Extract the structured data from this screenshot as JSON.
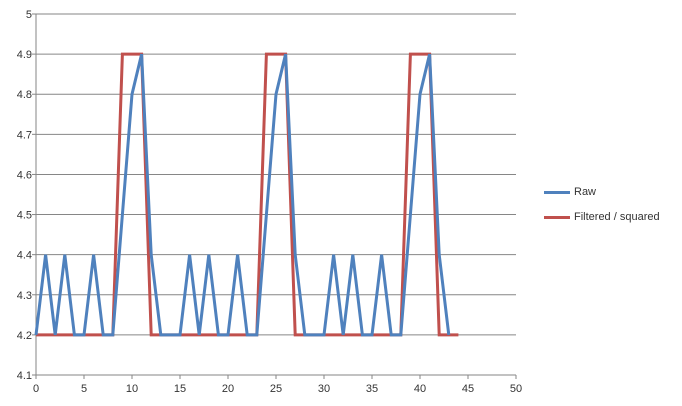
{
  "chart_data": {
    "type": "line",
    "title": "",
    "xlabel": "",
    "ylabel": "",
    "xlim": [
      0,
      50
    ],
    "ylim": [
      4.1,
      5.0
    ],
    "x_ticks": [
      0,
      5,
      10,
      15,
      20,
      25,
      30,
      35,
      40,
      45,
      50
    ],
    "y_ticks": [
      4.1,
      4.2,
      4.3,
      4.4,
      4.5,
      4.6,
      4.7,
      4.8,
      4.9,
      5.0
    ],
    "x_tick_labels": [
      "0",
      "5",
      "10",
      "15",
      "20",
      "25",
      "30",
      "35",
      "40",
      "45",
      "50"
    ],
    "y_tick_labels": [
      "4.1",
      "4.2",
      "4.3",
      "4.4",
      "4.5",
      "4.6",
      "4.7",
      "4.8",
      "4.9",
      "5"
    ],
    "grid": "horizontal",
    "legend_position": "right",
    "series": [
      {
        "name": "Raw",
        "color": "#4F81BD",
        "x": [
          0,
          1,
          2,
          3,
          4,
          5,
          6,
          7,
          8,
          9,
          10,
          11,
          12,
          13,
          14,
          15,
          16,
          17,
          18,
          19,
          20,
          21,
          22,
          23,
          24,
          25,
          26,
          27,
          28,
          29,
          30,
          31,
          32,
          33,
          34,
          35,
          36,
          37,
          38,
          39,
          40,
          41,
          42,
          43
        ],
        "y": [
          4.2,
          4.4,
          4.2,
          4.4,
          4.2,
          4.2,
          4.4,
          4.2,
          4.2,
          4.5,
          4.8,
          4.9,
          4.4,
          4.2,
          4.2,
          4.2,
          4.4,
          4.2,
          4.4,
          4.2,
          4.2,
          4.4,
          4.2,
          4.2,
          4.5,
          4.8,
          4.9,
          4.4,
          4.2,
          4.2,
          4.2,
          4.4,
          4.2,
          4.4,
          4.2,
          4.2,
          4.4,
          4.2,
          4.2,
          4.5,
          4.8,
          4.9,
          4.4,
          4.2
        ]
      },
      {
        "name": "Filtered / squared",
        "color": "#C0504D",
        "x": [
          0,
          1,
          2,
          3,
          4,
          5,
          6,
          7,
          8,
          9,
          10,
          11,
          12,
          13,
          14,
          15,
          16,
          17,
          18,
          19,
          20,
          21,
          22,
          23,
          24,
          25,
          26,
          27,
          28,
          29,
          30,
          31,
          32,
          33,
          34,
          35,
          36,
          37,
          38,
          39,
          40,
          41,
          42,
          43,
          44
        ],
        "y": [
          4.2,
          4.2,
          4.2,
          4.2,
          4.2,
          4.2,
          4.2,
          4.2,
          4.2,
          4.9,
          4.9,
          4.9,
          4.2,
          4.2,
          4.2,
          4.2,
          4.2,
          4.2,
          4.2,
          4.2,
          4.2,
          4.2,
          4.2,
          4.2,
          4.9,
          4.9,
          4.9,
          4.2,
          4.2,
          4.2,
          4.2,
          4.2,
          4.2,
          4.2,
          4.2,
          4.2,
          4.2,
          4.2,
          4.2,
          4.9,
          4.9,
          4.9,
          4.2,
          4.2,
          4.2
        ]
      }
    ]
  }
}
